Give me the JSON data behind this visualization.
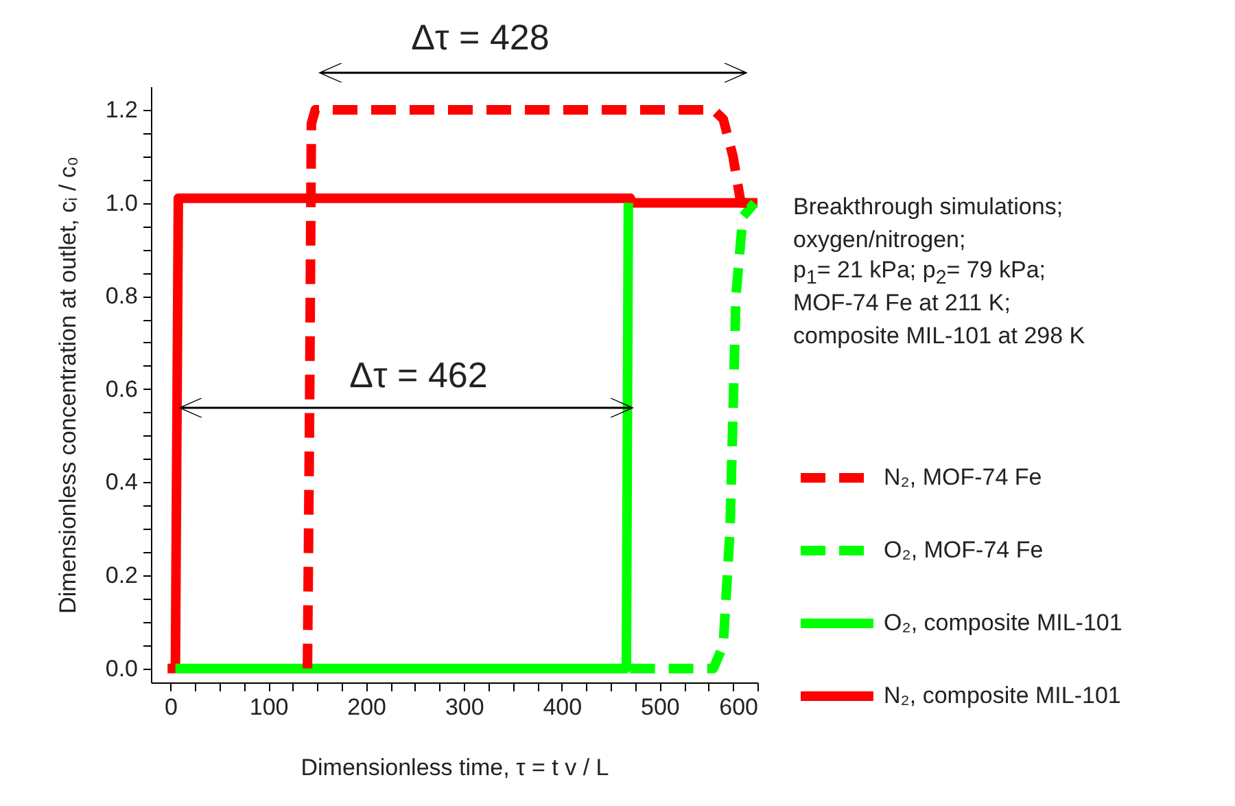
{
  "chart_data": {
    "type": "line",
    "xlabel": "Dimensionless time, τ = t v / L",
    "ylabel": "Dimensionless concentration at outlet, cᵢ / c₀",
    "xlim": [
      -20,
      600
    ],
    "ylim": [
      -0.03,
      1.25
    ],
    "xticks": [
      0,
      {
        "value": 25,
        "label": null
      },
      100,
      {
        "value": 50,
        "label": null
      },
      {
        "value": 75,
        "label": null
      },
      {
        "value": 125,
        "label": null
      },
      {
        "value": 150,
        "label": null
      },
      {
        "value": 175,
        "label": null
      },
      200,
      {
        "value": 225,
        "label": null
      },
      {
        "value": 250,
        "label": null
      },
      {
        "value": 275,
        "label": null
      },
      300,
      {
        "value": 325,
        "label": null
      },
      {
        "value": 350,
        "label": null
      },
      {
        "value": 375,
        "label": null
      },
      400,
      {
        "value": 425,
        "label": null
      },
      {
        "value": 450,
        "label": null
      },
      {
        "value": 475,
        "label": null
      },
      500,
      {
        "value": 525,
        "label": null
      },
      {
        "value": 550,
        "label": null
      },
      {
        "value": 575,
        "label": null
      },
      600
    ],
    "yticks": [
      {
        "value": 0,
        "label": "0.0"
      },
      {
        "value": 0.05,
        "label": null
      },
      {
        "value": 0.1,
        "label": null
      },
      {
        "value": 0.15,
        "label": null
      },
      {
        "value": 0.2,
        "label": "0.2"
      },
      {
        "value": 0.25,
        "label": null
      },
      {
        "value": 0.3,
        "label": null
      },
      {
        "value": 0.35,
        "label": null
      },
      {
        "value": 0.4,
        "label": "0.4"
      },
      {
        "value": 0.45,
        "label": null
      },
      {
        "value": 0.5,
        "label": null
      },
      {
        "value": 0.55,
        "label": null
      },
      {
        "value": 0.6,
        "label": "0.6"
      },
      {
        "value": 0.65,
        "label": null
      },
      {
        "value": 0.7,
        "label": null
      },
      {
        "value": 0.75,
        "label": null
      },
      {
        "value": 0.8,
        "label": "0.8"
      },
      {
        "value": 0.85,
        "label": null
      },
      {
        "value": 0.9,
        "label": null
      },
      {
        "value": 0.95,
        "label": null
      },
      {
        "value": 1,
        "label": "1.0"
      },
      {
        "value": 1.05,
        "label": null
      },
      {
        "value": 1.1,
        "label": null
      },
      {
        "value": 1.15,
        "label": null
      },
      {
        "value": 1.2,
        "label": "1.2"
      }
    ],
    "grid": false,
    "legend": "right",
    "annotations": [
      "Δτ = 428",
      "Δτ = 462",
      "Breakthrough simulations;",
      "oxygen/nitrogen;",
      "p$_{1}$= 21 kPa; p$_{2}$= 79 kPa;",
      "MOF-74 Fe at 211  K;",
      "composite MIL-101 at 298 K"
    ],
    "series": [
      {
        "name": "N₂, MOF-74 Fe",
        "color": "#ff0000",
        "line_style": "dashed",
        "x": [
          140,
          142,
          144,
          148,
          555,
          565,
          575,
          583,
          600
        ],
        "values": [
          0,
          0.5,
          1.17,
          1.2,
          1.2,
          1.18,
          1.1,
          1.0,
          1.0
        ]
      },
      {
        "name": "O₂, MOF-74 Fe",
        "color": "#00ff00",
        "line_style": "dashed",
        "x": [
          470,
          555,
          565,
          572,
          578,
          585,
          597
        ],
        "values": [
          0,
          0,
          0.05,
          0.3,
          0.8,
          0.97,
          1.0
        ]
      },
      {
        "name": "O₂, composite MIL-101",
        "color": "#00ff00",
        "line_style": "solid",
        "x": [
          5,
          466,
          468
        ],
        "values": [
          0,
          0,
          1.0
        ]
      },
      {
        "name": "N₂, composite MIL-101",
        "color": "#ff0000",
        "line_style": "solid",
        "x": [
          -3,
          5,
          8,
          470,
          472,
          600
        ],
        "values": [
          0,
          0,
          1.01,
          1.01,
          1.0,
          1.0
        ]
      }
    ]
  }
}
